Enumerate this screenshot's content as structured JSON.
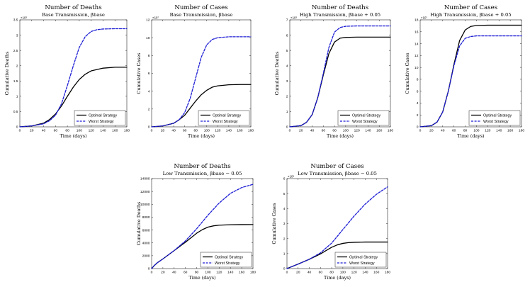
{
  "legend_labels": [
    "Optimal Strategy",
    "Worst Strategy"
  ],
  "colors": {
    "optimal": "#000000",
    "worst": "#1c1cd4"
  },
  "chart_data": [
    {
      "type": "line",
      "title": "Number of Deaths",
      "subtitle": "Base Transmission, βbase",
      "xlabel": "Time (days)",
      "ylabel": "Cumulative Deaths",
      "xlim": [
        0,
        180
      ],
      "ylim": [
        0,
        3.5
      ],
      "x_ticks": [
        0,
        20,
        40,
        60,
        80,
        100,
        120,
        140,
        160,
        180
      ],
      "y_ticks": [
        0,
        0.5,
        1,
        1.5,
        2,
        2.5,
        3,
        3.5
      ],
      "y_tick_labels": [
        "0",
        "0.5",
        "1",
        "1.5",
        "2",
        "2.5",
        "3",
        "3.5"
      ],
      "exponent": "×10⁵",
      "legend_position": "lower-right",
      "series": [
        {
          "name": "Optimal Strategy",
          "style": "solid",
          "x": [
            0,
            20,
            40,
            50,
            60,
            70,
            80,
            90,
            100,
            110,
            120,
            140,
            160,
            180
          ],
          "y": [
            0,
            0.03,
            0.12,
            0.24,
            0.42,
            0.68,
            1.0,
            1.3,
            1.55,
            1.72,
            1.83,
            1.92,
            1.95,
            1.95
          ]
        },
        {
          "name": "Worst Strategy",
          "style": "dashed",
          "x": [
            0,
            20,
            40,
            50,
            60,
            70,
            80,
            90,
            100,
            110,
            120,
            130,
            140,
            160,
            180
          ],
          "y": [
            0,
            0.03,
            0.1,
            0.2,
            0.38,
            0.75,
            1.35,
            2.0,
            2.6,
            2.95,
            3.12,
            3.18,
            3.2,
            3.21,
            3.21
          ]
        }
      ]
    },
    {
      "type": "line",
      "title": "Number of Cases",
      "subtitle": "Base Transmission, βbase",
      "xlabel": "Time (days)",
      "ylabel": "Cumulative Cases",
      "xlim": [
        0,
        180
      ],
      "ylim": [
        0,
        12
      ],
      "x_ticks": [
        0,
        20,
        40,
        60,
        80,
        100,
        120,
        140,
        160,
        180
      ],
      "y_ticks": [
        0,
        2,
        4,
        6,
        8,
        10,
        12
      ],
      "y_tick_labels": [
        "0",
        "2",
        "4",
        "6",
        "8",
        "10",
        "12"
      ],
      "exponent": "×10⁷",
      "legend_position": "lower-right",
      "series": [
        {
          "name": "Optimal Strategy",
          "style": "solid",
          "x": [
            0,
            20,
            40,
            50,
            60,
            70,
            80,
            90,
            100,
            110,
            120,
            140,
            160,
            180
          ],
          "y": [
            0,
            0.1,
            0.4,
            0.8,
            1.3,
            2.1,
            2.9,
            3.6,
            4.1,
            4.45,
            4.6,
            4.72,
            4.75,
            4.75
          ]
        },
        {
          "name": "Worst Strategy",
          "style": "dashed",
          "x": [
            0,
            20,
            40,
            50,
            60,
            70,
            80,
            90,
            100,
            110,
            120,
            140,
            160,
            180
          ],
          "y": [
            0,
            0.1,
            0.4,
            0.8,
            1.6,
            3.2,
            5.5,
            7.8,
            9.2,
            9.8,
            10.0,
            10.1,
            10.1,
            10.1
          ]
        }
      ]
    },
    {
      "type": "line",
      "title": "Number of Deaths",
      "subtitle": "High Transmission, βbase + 0.05",
      "xlabel": "Time (days)",
      "ylabel": "Cumulative Deaths",
      "xlim": [
        0,
        180
      ],
      "ylim": [
        0,
        7
      ],
      "x_ticks": [
        0,
        20,
        40,
        60,
        80,
        100,
        120,
        140,
        160,
        180
      ],
      "y_ticks": [
        0,
        1,
        2,
        3,
        4,
        5,
        6,
        7
      ],
      "y_tick_labels": [
        "0",
        "1",
        "2",
        "3",
        "4",
        "5",
        "6",
        "7"
      ],
      "exponent": "×10⁵",
      "legend_position": "lower-right",
      "series": [
        {
          "name": "Optimal Strategy",
          "style": "solid",
          "x": [
            0,
            20,
            30,
            40,
            50,
            60,
            70,
            80,
            90,
            100,
            120,
            140,
            180
          ],
          "y": [
            0,
            0.08,
            0.3,
            0.8,
            1.9,
            3.4,
            4.8,
            5.55,
            5.8,
            5.85,
            5.87,
            5.87,
            5.87
          ]
        },
        {
          "name": "Worst Strategy",
          "style": "dashed",
          "x": [
            0,
            20,
            30,
            40,
            50,
            60,
            70,
            80,
            90,
            100,
            120,
            140,
            180
          ],
          "y": [
            0,
            0.08,
            0.3,
            0.8,
            1.9,
            3.5,
            5.2,
            6.2,
            6.5,
            6.58,
            6.6,
            6.6,
            6.6
          ]
        }
      ]
    },
    {
      "type": "line",
      "title": "Number of Cases",
      "subtitle": "High Transmission, βbase + 0.05",
      "xlabel": "Time (days)",
      "ylabel": "Cumulative Cases",
      "xlim": [
        0,
        180
      ],
      "ylim": [
        0,
        18
      ],
      "x_ticks": [
        0,
        20,
        40,
        60,
        80,
        100,
        120,
        140,
        160,
        180
      ],
      "y_ticks": [
        0,
        2,
        4,
        6,
        8,
        10,
        12,
        14,
        16,
        18
      ],
      "y_tick_labels": [
        "0",
        "2",
        "4",
        "6",
        "8",
        "10",
        "12",
        "14",
        "16",
        "18"
      ],
      "exponent": "×10⁷",
      "legend_position": "lower-right",
      "series": [
        {
          "name": "Optimal Strategy",
          "style": "solid",
          "x": [
            0,
            20,
            30,
            40,
            50,
            60,
            70,
            80,
            90,
            100,
            120,
            140,
            180
          ],
          "y": [
            0,
            0.2,
            0.8,
            2.5,
            6.0,
            10.5,
            14.5,
            16.3,
            16.9,
            17.05,
            17.1,
            17.1,
            17.1
          ]
        },
        {
          "name": "Worst Strategy",
          "style": "dashed",
          "x": [
            0,
            20,
            30,
            40,
            50,
            60,
            70,
            80,
            90,
            100,
            120,
            140,
            180
          ],
          "y": [
            0,
            0.2,
            0.8,
            2.5,
            6.0,
            10.3,
            13.6,
            14.9,
            15.2,
            15.3,
            15.3,
            15.3,
            15.3
          ]
        }
      ]
    },
    {
      "type": "line",
      "title": "Number of Deaths",
      "subtitle": "Low Transmission, βbase − 0.05",
      "xlabel": "Time (days)",
      "ylabel": "Cumulative Deaths",
      "xlim": [
        0,
        180
      ],
      "ylim": [
        0,
        14000
      ],
      "x_ticks": [
        0,
        20,
        40,
        60,
        80,
        100,
        120,
        140,
        160,
        180
      ],
      "y_ticks": [
        0,
        2000,
        4000,
        6000,
        8000,
        10000,
        12000,
        14000
      ],
      "y_tick_labels": [
        "0",
        "2000",
        "4000",
        "6000",
        "8000",
        "10000",
        "12000",
        "14000"
      ],
      "exponent": "",
      "legend_position": "lower-right",
      "series": [
        {
          "name": "Optimal Strategy",
          "style": "solid",
          "x": [
            0,
            5,
            10,
            20,
            40,
            60,
            70,
            80,
            90,
            100,
            110,
            120,
            140,
            160,
            180
          ],
          "y": [
            0,
            500,
            900,
            1500,
            2800,
            4100,
            4800,
            5500,
            6050,
            6450,
            6650,
            6750,
            6820,
            6840,
            6850
          ]
        },
        {
          "name": "Worst Strategy",
          "style": "dashed",
          "x": [
            0,
            5,
            10,
            20,
            40,
            60,
            80,
            100,
            120,
            140,
            160,
            180
          ],
          "y": [
            0,
            500,
            900,
            1500,
            2800,
            4300,
            6200,
            8300,
            10200,
            11700,
            12600,
            13100
          ]
        }
      ]
    },
    {
      "type": "line",
      "title": "Number of Cases",
      "subtitle": "Low Transmission, βbase − 0.05",
      "xlabel": "Time (days)",
      "ylabel": "Cumulative Cases",
      "xlim": [
        0,
        180
      ],
      "ylim": [
        0,
        6
      ],
      "x_ticks": [
        0,
        20,
        40,
        60,
        80,
        100,
        120,
        140,
        160,
        180
      ],
      "y_ticks": [
        0,
        1,
        2,
        3,
        4,
        5,
        6
      ],
      "y_tick_labels": [
        "0",
        "1",
        "2",
        "3",
        "4",
        "5",
        "6"
      ],
      "exponent": "×10⁶",
      "legend_position": "lower-right",
      "series": [
        {
          "name": "Optimal Strategy",
          "style": "solid",
          "x": [
            0,
            20,
            40,
            60,
            70,
            80,
            90,
            100,
            110,
            120,
            140,
            160,
            180
          ],
          "y": [
            0,
            0.3,
            0.62,
            0.98,
            1.2,
            1.42,
            1.58,
            1.68,
            1.73,
            1.75,
            1.77,
            1.77,
            1.77
          ]
        },
        {
          "name": "Worst Strategy",
          "style": "dashed",
          "x": [
            0,
            20,
            40,
            60,
            80,
            100,
            120,
            140,
            160,
            180
          ],
          "y": [
            0,
            0.3,
            0.62,
            1.05,
            1.7,
            2.6,
            3.5,
            4.3,
            4.95,
            5.45
          ]
        }
      ]
    }
  ]
}
